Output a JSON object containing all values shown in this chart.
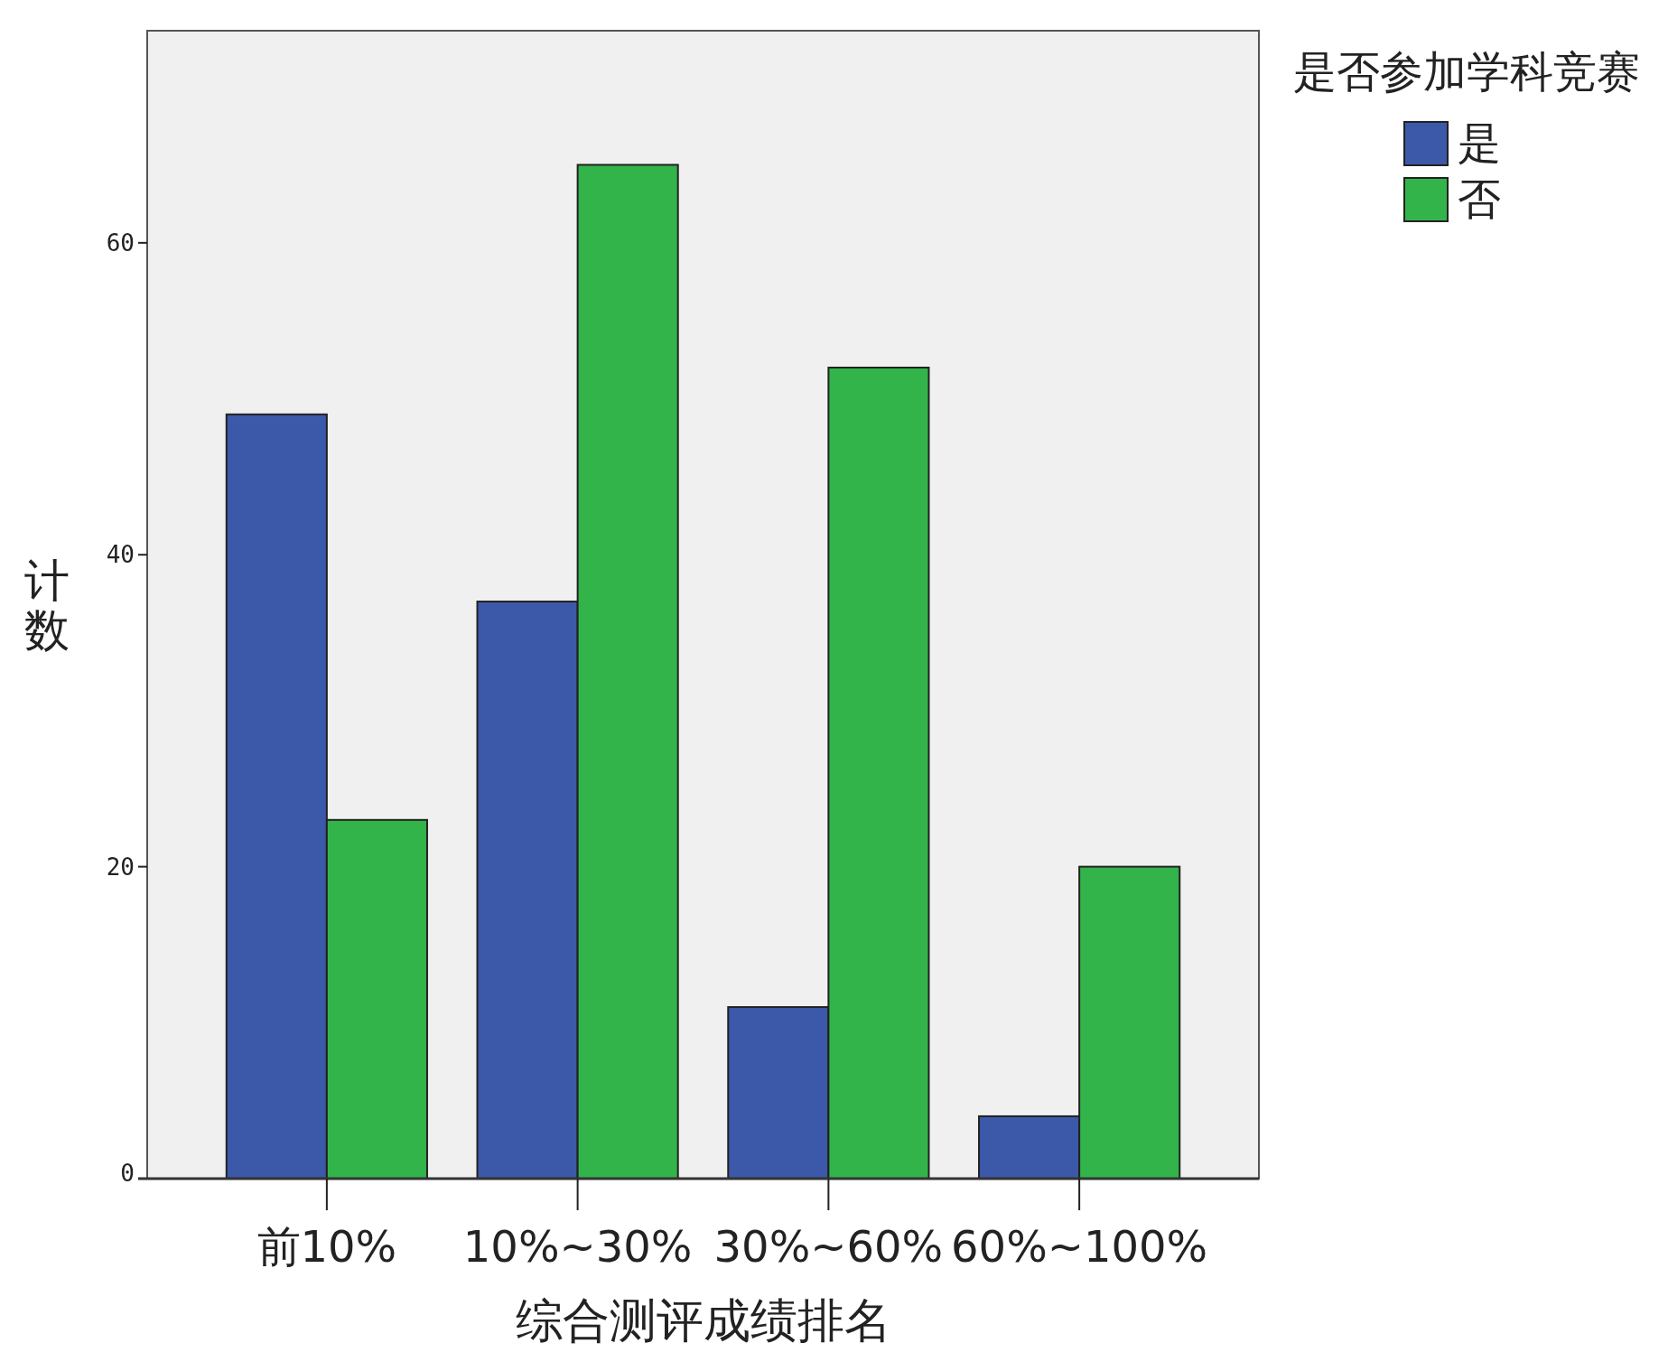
{
  "chart_data": {
    "type": "bar",
    "xlabel": "综合测评成绩排名",
    "ylabel": "计数",
    "legend_title": "是否参加学科竞赛",
    "legend": "top right",
    "categories": [
      "前10%",
      "10%~30%",
      "30%~60%",
      "60%~100%"
    ],
    "series": [
      {
        "name": "是",
        "color": "#3c58a8",
        "values": [
          49,
          37,
          11,
          4
        ]
      },
      {
        "name": "否",
        "color": "#32b44a",
        "values": [
          23,
          65,
          52,
          20
        ]
      }
    ],
    "ylim": [
      0,
      73.6
    ],
    "yticks": [
      0,
      20,
      40,
      60
    ]
  }
}
